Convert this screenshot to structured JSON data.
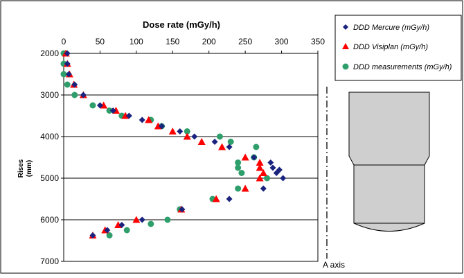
{
  "chart_data": {
    "type": "scatter",
    "title": "Dose rate (mGy/h)",
    "ylabel_line1": "Rises",
    "ylabel_line2": "(mm)",
    "xlim": [
      0,
      350
    ],
    "ylim": [
      2000,
      7000
    ],
    "y_reversed": true,
    "x_axis_position": "top",
    "x_ticks": [
      "0",
      "50",
      "100",
      "150",
      "200",
      "250",
      "300",
      "350"
    ],
    "y_ticks": [
      "2000",
      "3000",
      "4000",
      "5000",
      "6000",
      "7000"
    ],
    "grid": "horizontal",
    "legend_position": "right",
    "series": [
      {
        "name": "DDD Mercure (mGy/h)",
        "marker": "diamond",
        "color": "#1a237e",
        "points": [
          [
            5,
            2000
          ],
          [
            5,
            2250
          ],
          [
            7,
            2500
          ],
          [
            15,
            2750
          ],
          [
            27,
            3000
          ],
          [
            50,
            3250
          ],
          [
            68,
            3375
          ],
          [
            90,
            3500
          ],
          [
            108,
            3600
          ],
          [
            135,
            3750
          ],
          [
            160,
            3875
          ],
          [
            180,
            4000
          ],
          [
            208,
            4125
          ],
          [
            228,
            4250
          ],
          [
            262,
            4500
          ],
          [
            285,
            4625
          ],
          [
            288,
            4750
          ],
          [
            297,
            4800
          ],
          [
            293,
            4875
          ],
          [
            302,
            5000
          ],
          [
            275,
            5250
          ],
          [
            228,
            5500
          ],
          [
            163,
            5750
          ],
          [
            108,
            6000
          ],
          [
            80,
            6125
          ],
          [
            60,
            6250
          ],
          [
            40,
            6375
          ]
        ]
      },
      {
        "name": "DDD Visiplan (mGy/h)",
        "marker": "triangle",
        "color": "#ff0000",
        "points": [
          [
            3,
            2000
          ],
          [
            5,
            2250
          ],
          [
            8,
            2500
          ],
          [
            14,
            2750
          ],
          [
            27,
            3000
          ],
          [
            55,
            3250
          ],
          [
            72,
            3375
          ],
          [
            85,
            3500
          ],
          [
            117,
            3600
          ],
          [
            130,
            3750
          ],
          [
            150,
            3875
          ],
          [
            170,
            4000
          ],
          [
            190,
            4125
          ],
          [
            218,
            4250
          ],
          [
            250,
            4500
          ],
          [
            270,
            4625
          ],
          [
            270,
            4750
          ],
          [
            275,
            4875
          ],
          [
            270,
            5000
          ],
          [
            250,
            5250
          ],
          [
            210,
            5500
          ],
          [
            162,
            5750
          ],
          [
            100,
            6000
          ],
          [
            75,
            6125
          ],
          [
            57,
            6250
          ],
          [
            40,
            6375
          ]
        ]
      },
      {
        "name": "DDD measurements (mGy/h)",
        "marker": "circle",
        "color": "#2e9e6b",
        "points": [
          [
            0,
            2000
          ],
          [
            0,
            2250
          ],
          [
            0,
            2500
          ],
          [
            5,
            2750
          ],
          [
            15,
            3000
          ],
          [
            40,
            3250
          ],
          [
            63,
            3375
          ],
          [
            80,
            3500
          ],
          [
            120,
            3600
          ],
          [
            135,
            3750
          ],
          [
            170,
            3875
          ],
          [
            215,
            4000
          ],
          [
            230,
            4125
          ],
          [
            262,
            4500
          ],
          [
            240,
            4625
          ],
          [
            265,
            4250
          ],
          [
            240,
            4750
          ],
          [
            245,
            4875
          ],
          [
            280,
            5000
          ],
          [
            240,
            5250
          ],
          [
            205,
            5500
          ],
          [
            160,
            5750
          ],
          [
            143,
            6000
          ],
          [
            120,
            6100
          ],
          [
            87,
            6250
          ],
          [
            63,
            6375
          ]
        ]
      }
    ],
    "annotation": "A axis"
  }
}
